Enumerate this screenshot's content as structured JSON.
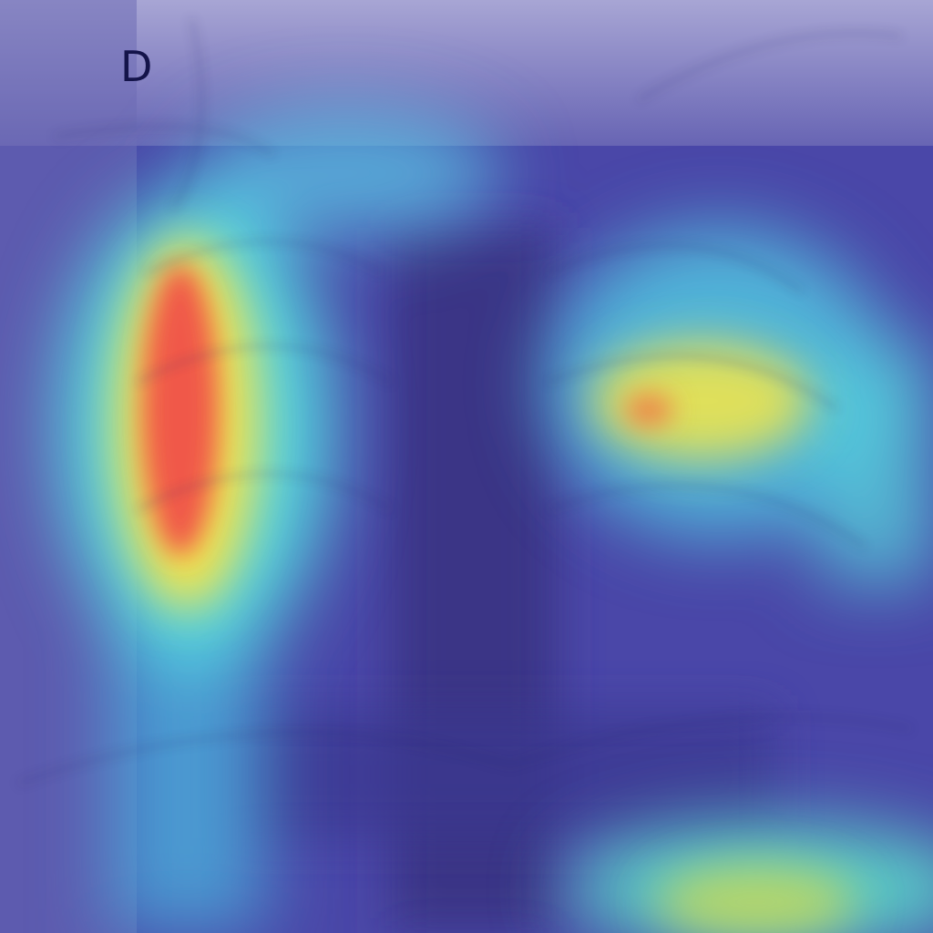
{
  "figure": {
    "panel_label": "D",
    "description_icon": "chest-xray-heatmap-image",
    "colors": {
      "background_blue": "#3d3a8a",
      "heat_low": "#4b4bd8",
      "heat_mid": "#55e0e0",
      "heat_high_yellow": "#f4e44a",
      "heat_peak_red": "#f0504a"
    }
  }
}
